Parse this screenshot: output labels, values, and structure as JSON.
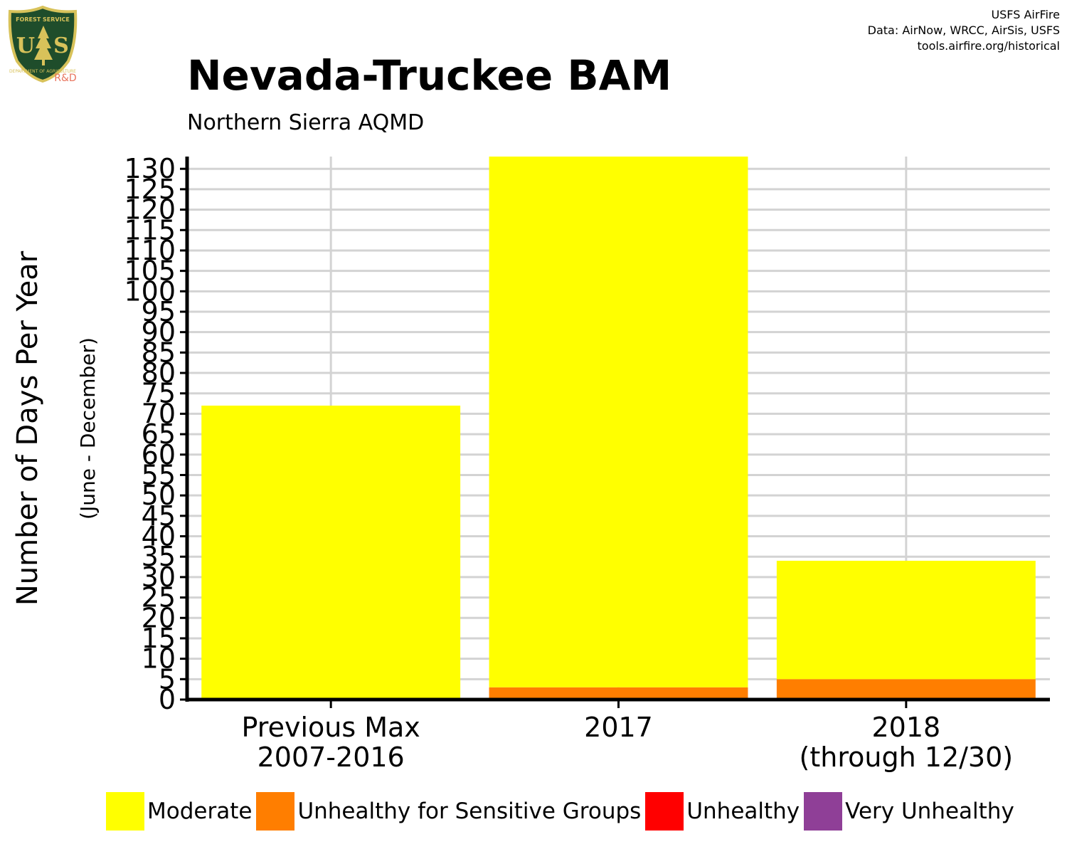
{
  "header": {
    "logo": {
      "top_text": "FOREST SERVICE",
      "mark": "US",
      "bottom_text": "DEPARTMENT OF AGRICULTURE",
      "badge": "R&D",
      "colors": {
        "shield": "#1f4d2b",
        "border": "#d8c25a",
        "badge": "#e8745d"
      }
    },
    "credits": [
      "USFS AirFire",
      "Data: AirNow, WRCC, AirSis, USFS",
      "tools.airfire.org/historical"
    ]
  },
  "chart_data": {
    "type": "bar",
    "stacked": true,
    "title": "Nevada-Truckee BAM",
    "subtitle": "Northern Sierra AQMD",
    "ylabel": "Number of Days Per Year",
    "ylabel_sub": "(June - December)",
    "xlabel": "",
    "categories": [
      [
        "Previous Max",
        "2007-2016"
      ],
      [
        "2017"
      ],
      [
        "2018",
        "(through 12/30)"
      ]
    ],
    "series": [
      {
        "name": "Moderate",
        "color": "#ffff00",
        "values": [
          72,
          130,
          29
        ]
      },
      {
        "name": "Unhealthy for Sensitive Groups",
        "color": "#ff7e00",
        "values": [
          0,
          3,
          5
        ]
      },
      {
        "name": "Unhealthy",
        "color": "#ff0000",
        "values": [
          0,
          0,
          0
        ]
      },
      {
        "name": "Very Unhealthy",
        "color": "#8f3f97",
        "values": [
          0,
          0,
          0
        ]
      }
    ],
    "ylim": [
      0,
      133
    ],
    "yticks": [
      0,
      5,
      10,
      15,
      20,
      25,
      30,
      35,
      40,
      45,
      50,
      55,
      60,
      65,
      70,
      75,
      80,
      85,
      90,
      95,
      100,
      105,
      110,
      115,
      120,
      125,
      130
    ],
    "grid": true,
    "legend_position": "bottom",
    "colors": {
      "grid": "#d3d3d3",
      "axis": "#000000"
    }
  }
}
